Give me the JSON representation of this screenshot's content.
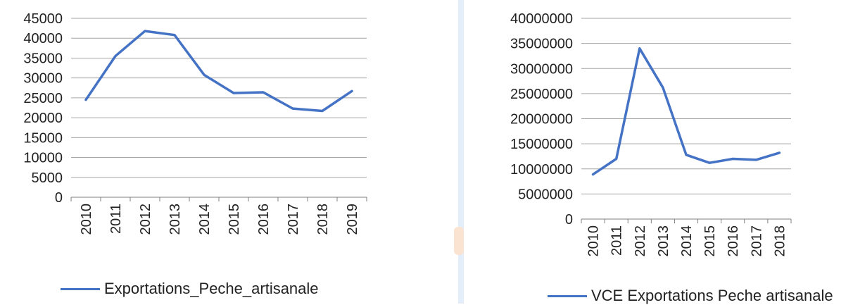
{
  "colors": {
    "line": "#4472c4",
    "axis": "#7f7f7f",
    "grid": "#a6a6a6",
    "text": "#222222"
  },
  "chart_data": [
    {
      "type": "line",
      "title": "",
      "xlabel": "",
      "ylabel": "",
      "x": [
        "2010",
        "2011",
        "2012",
        "2013",
        "2014",
        "2015",
        "2016",
        "2017",
        "2018",
        "2019"
      ],
      "yticks": [
        "0",
        "5000",
        "10000",
        "15000",
        "20000",
        "25000",
        "30000",
        "35000",
        "40000",
        "45000"
      ],
      "ylim": [
        0,
        45000
      ],
      "grid": true,
      "legend_position": "bottom",
      "series": [
        {
          "name": "Exportations_Peche_artisanale",
          "values": [
            24500,
            35500,
            41800,
            40800,
            30800,
            26200,
            26400,
            22300,
            21700,
            26700
          ]
        }
      ]
    },
    {
      "type": "line",
      "title": "",
      "xlabel": "",
      "ylabel": "",
      "x": [
        "2010",
        "2011",
        "2012",
        "2013",
        "2014",
        "2015",
        "2016",
        "2017",
        "2018"
      ],
      "yticks": [
        "0",
        "5000000",
        "10000000",
        "15000000",
        "20000000",
        "25000000",
        "30000000",
        "35000000",
        "40000000"
      ],
      "ylim": [
        0,
        40000000
      ],
      "grid": true,
      "legend_position": "bottom",
      "series": [
        {
          "name": "VCE Exportations Peche artisanale",
          "values": [
            8900000,
            12000000,
            34000000,
            26200000,
            12800000,
            11200000,
            12000000,
            11800000,
            13200000
          ]
        }
      ]
    }
  ]
}
